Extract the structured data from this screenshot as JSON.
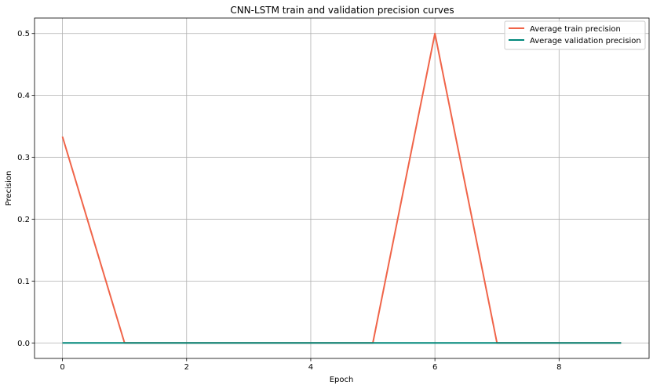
{
  "chart_data": {
    "type": "line",
    "title": "CNN-LSTM train and validation precision curves",
    "xlabel": "Epoch",
    "ylabel": "Precision",
    "xlim": [
      -0.45,
      9.45
    ],
    "ylim": [
      -0.025,
      0.525
    ],
    "xticks": [
      0,
      2,
      4,
      6,
      8
    ],
    "yticks": [
      0.0,
      0.1,
      0.2,
      0.3,
      0.4,
      0.5
    ],
    "xtick_labels": [
      "0",
      "2",
      "4",
      "6",
      "8"
    ],
    "ytick_labels": [
      "0.0",
      "0.1",
      "0.2",
      "0.3",
      "0.4",
      "0.5"
    ],
    "grid": true,
    "legend_position": "top-right",
    "x": [
      0,
      1,
      2,
      3,
      4,
      5,
      6,
      7,
      8,
      9
    ],
    "series": [
      {
        "name": "Average train precision",
        "color": "#f06449",
        "values": [
          0.3333,
          0.0,
          0.0,
          0.0,
          0.0,
          0.0,
          0.5,
          0.0,
          0.0,
          0.0
        ]
      },
      {
        "name": "Average validation precision",
        "color": "#00877a",
        "values": [
          0.0,
          0.0,
          0.0,
          0.0,
          0.0,
          0.0,
          0.0,
          0.0,
          0.0,
          0.0
        ]
      }
    ]
  }
}
